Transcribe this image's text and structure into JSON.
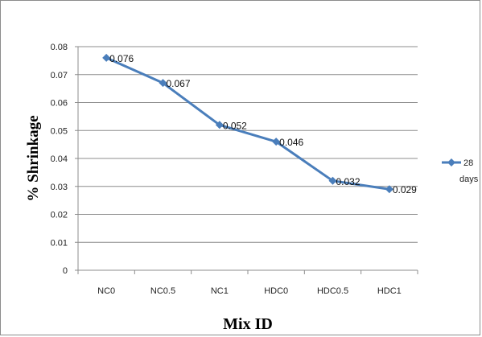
{
  "chart_data": {
    "type": "line",
    "title": "",
    "xlabel": "Mix ID",
    "ylabel": "% Shrinkage",
    "categories": [
      "NC0",
      "NC0.5",
      "NC1",
      "HDC0",
      "HDC0.5",
      "HDC1"
    ],
    "series": [
      {
        "name": "28 days",
        "values": [
          0.076,
          0.067,
          0.052,
          0.046,
          0.032,
          0.029
        ],
        "labels": [
          "0.076",
          "0.067",
          "0.052",
          "0.046",
          "0.032",
          "0.029"
        ],
        "color": "#4a7ebb"
      }
    ],
    "ylim": [
      0,
      0.08
    ],
    "yticks": [
      "0",
      "0.01",
      "0.02",
      "0.03",
      "0.04",
      "0.05",
      "0.06",
      "0.07",
      "0.08"
    ],
    "ytick_values": [
      0,
      0.01,
      0.02,
      0.03,
      0.04,
      0.05,
      0.06,
      0.07,
      0.08
    ],
    "grid": true,
    "legend": "right",
    "legend_lines": [
      "28",
      "days"
    ]
  }
}
